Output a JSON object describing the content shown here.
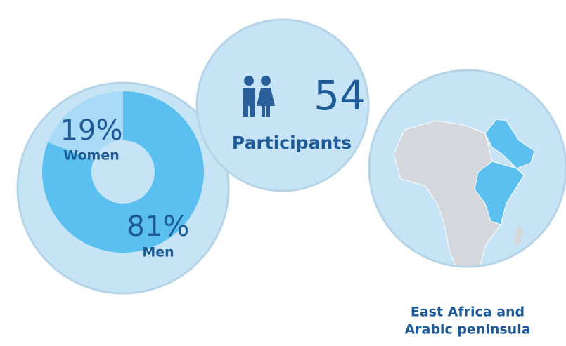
{
  "chart_data": {
    "type": "pie",
    "categories": [
      "Women",
      "Men"
    ],
    "values": [
      19,
      81
    ],
    "value_labels": [
      "19%",
      "81%"
    ],
    "colors": [
      "#a9dbf6",
      "#5bc0ef"
    ]
  },
  "participants": {
    "count": "54",
    "label": "Participants"
  },
  "region": {
    "label_lines": [
      "East Africa and",
      "Arabic peninsula"
    ]
  }
}
